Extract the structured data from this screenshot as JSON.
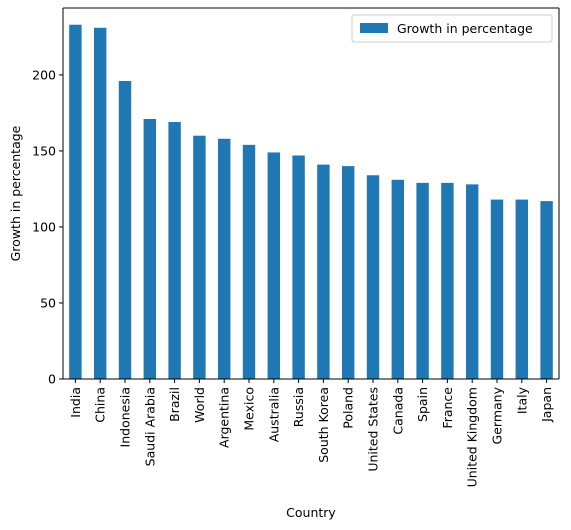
{
  "chart_data": {
    "type": "bar",
    "title": "",
    "xlabel": "Country",
    "ylabel": "Growth in percentage",
    "ylim": [
      0,
      244
    ],
    "yticks": [
      0,
      50,
      100,
      150,
      200
    ],
    "grid": false,
    "legend_position": "top-right",
    "categories": [
      "India",
      "China",
      "Indonesia",
      "Saudi Arabia",
      "Brazil",
      "World",
      "Argentina",
      "Mexico",
      "Australia",
      "Russia",
      "South Korea",
      "Poland",
      "United States",
      "Canada",
      "Spain",
      "France",
      "United Kingdom",
      "Germany",
      "Italy",
      "Japan"
    ],
    "series": [
      {
        "name": "Growth in percentage",
        "color": "#1f77b4",
        "values": [
          233,
          231,
          196,
          171,
          169,
          160,
          158,
          154,
          149,
          147,
          141,
          140,
          134,
          131,
          129,
          129,
          128,
          118,
          118,
          117
        ]
      }
    ]
  }
}
